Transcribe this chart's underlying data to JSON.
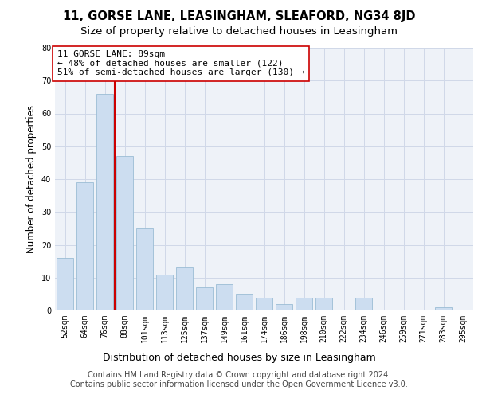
{
  "title1": "11, GORSE LANE, LEASINGHAM, SLEAFORD, NG34 8JD",
  "title2": "Size of property relative to detached houses in Leasingham",
  "xlabel": "Distribution of detached houses by size in Leasingham",
  "ylabel": "Number of detached properties",
  "categories": [
    "52sqm",
    "64sqm",
    "76sqm",
    "88sqm",
    "101sqm",
    "113sqm",
    "125sqm",
    "137sqm",
    "149sqm",
    "161sqm",
    "174sqm",
    "186sqm",
    "198sqm",
    "210sqm",
    "222sqm",
    "234sqm",
    "246sqm",
    "259sqm",
    "271sqm",
    "283sqm",
    "295sqm"
  ],
  "values": [
    16,
    39,
    66,
    47,
    25,
    11,
    13,
    7,
    8,
    5,
    4,
    2,
    4,
    4,
    0,
    4,
    0,
    0,
    0,
    1,
    0
  ],
  "bar_color": "#ccddf0",
  "bar_edge_color": "#9bbdd4",
  "annotation_text": "11 GORSE LANE: 89sqm\n← 48% of detached houses are smaller (122)\n51% of semi-detached houses are larger (130) →",
  "ylim": [
    0,
    80
  ],
  "yticks": [
    0,
    10,
    20,
    30,
    40,
    50,
    60,
    70,
    80
  ],
  "grid_color": "#d0d8e8",
  "background_color": "#eef2f8",
  "footer_text": "Contains HM Land Registry data © Crown copyright and database right 2024.\nContains public sector information licensed under the Open Government Licence v3.0.",
  "title1_fontsize": 10.5,
  "title2_fontsize": 9.5,
  "xlabel_fontsize": 9,
  "ylabel_fontsize": 8.5,
  "tick_fontsize": 7,
  "annotation_fontsize": 8,
  "footer_fontsize": 7
}
